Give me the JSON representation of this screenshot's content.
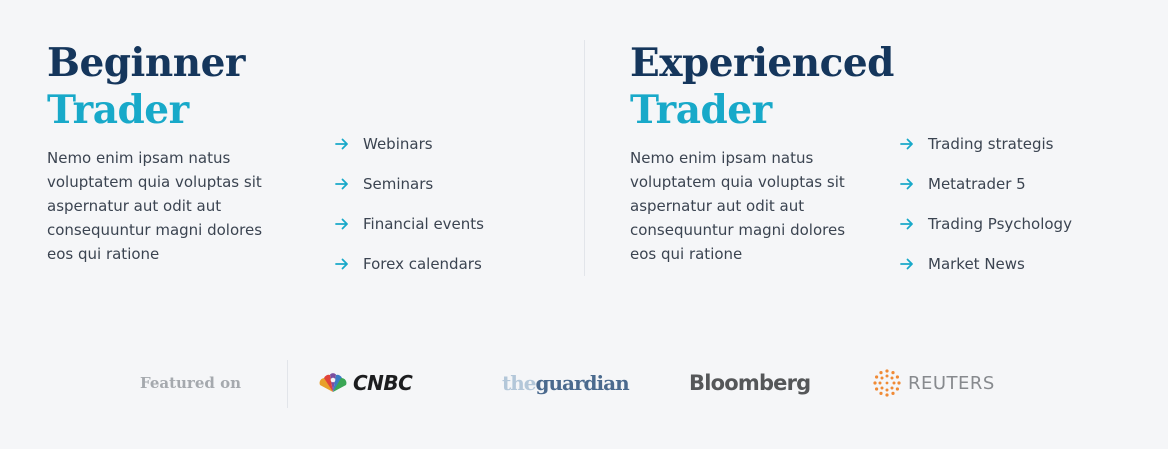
{
  "beginner": {
    "title_line1": "Beginner",
    "title_line2": "Trader",
    "description": "Nemo enim ipsam natus voluptatem quia voluptas sit aspernatur aut odit aut consequuntur magni dolores eos qui ratione",
    "items": [
      "Webinars",
      "Seminars",
      "Financial events",
      "Forex calendars"
    ]
  },
  "experienced": {
    "title_line1": "Experienced",
    "title_line2": "Trader",
    "description": "Nemo enim ipsam natus voluptatem quia voluptas sit aspernatur aut odit aut consequuntur magni dolores eos qui ratione",
    "items": [
      "Trading strategis",
      "Metatrader 5",
      "Trading Psychology",
      "Market News"
    ]
  },
  "featured": {
    "label": "Featured on",
    "logos": {
      "cnbc": "CNBC",
      "guardian_the": "the",
      "guardian_name": "guardian",
      "bloomberg": "Bloomberg",
      "reuters": "REUTERS"
    }
  },
  "colors": {
    "navy": "#15365c",
    "accent": "#18a9c9",
    "text": "#3b4451",
    "background": "#f5f6f8"
  },
  "icons": {
    "list_bullet": "arrow-right-icon",
    "cnbc": "nbc-peacock-icon",
    "reuters": "reuters-dots-icon"
  }
}
